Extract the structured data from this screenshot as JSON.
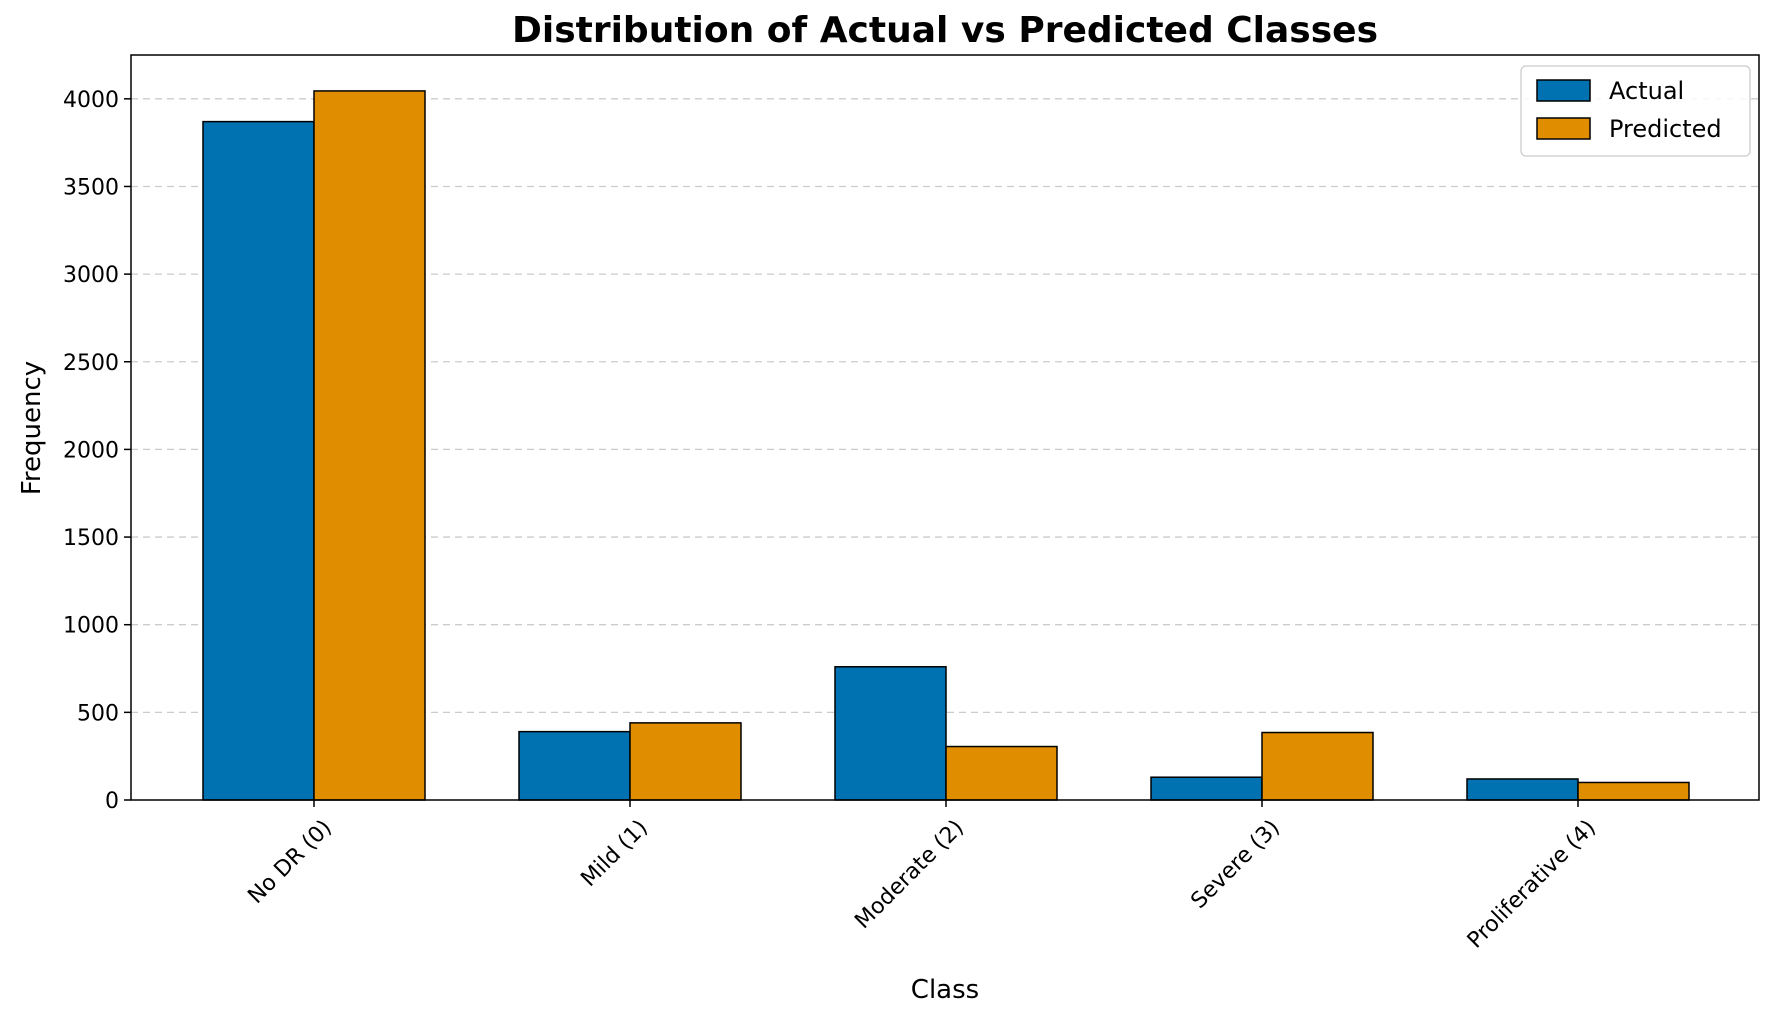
{
  "chart_data": {
    "type": "bar",
    "title": "Distribution of Actual vs Predicted Classes",
    "xlabel": "Class",
    "ylabel": "Frequency",
    "categories": [
      "No DR (0)",
      "Mild (1)",
      "Moderate (2)",
      "Severe (3)",
      "Proliferative (4)"
    ],
    "series": [
      {
        "name": "Actual",
        "values": [
          3870,
          390,
          760,
          130,
          120
        ],
        "color": "#0072B2"
      },
      {
        "name": "Predicted",
        "values": [
          4045,
          440,
          305,
          385,
          100
        ],
        "color": "#E08E00"
      }
    ],
    "ylim": [
      0,
      4250
    ],
    "yticks": [
      0,
      500,
      1000,
      1500,
      2000,
      2500,
      3000,
      3500,
      4000
    ],
    "grid": "y-dashed",
    "legend_position": "top-right",
    "x_tick_rotation": 45
  }
}
